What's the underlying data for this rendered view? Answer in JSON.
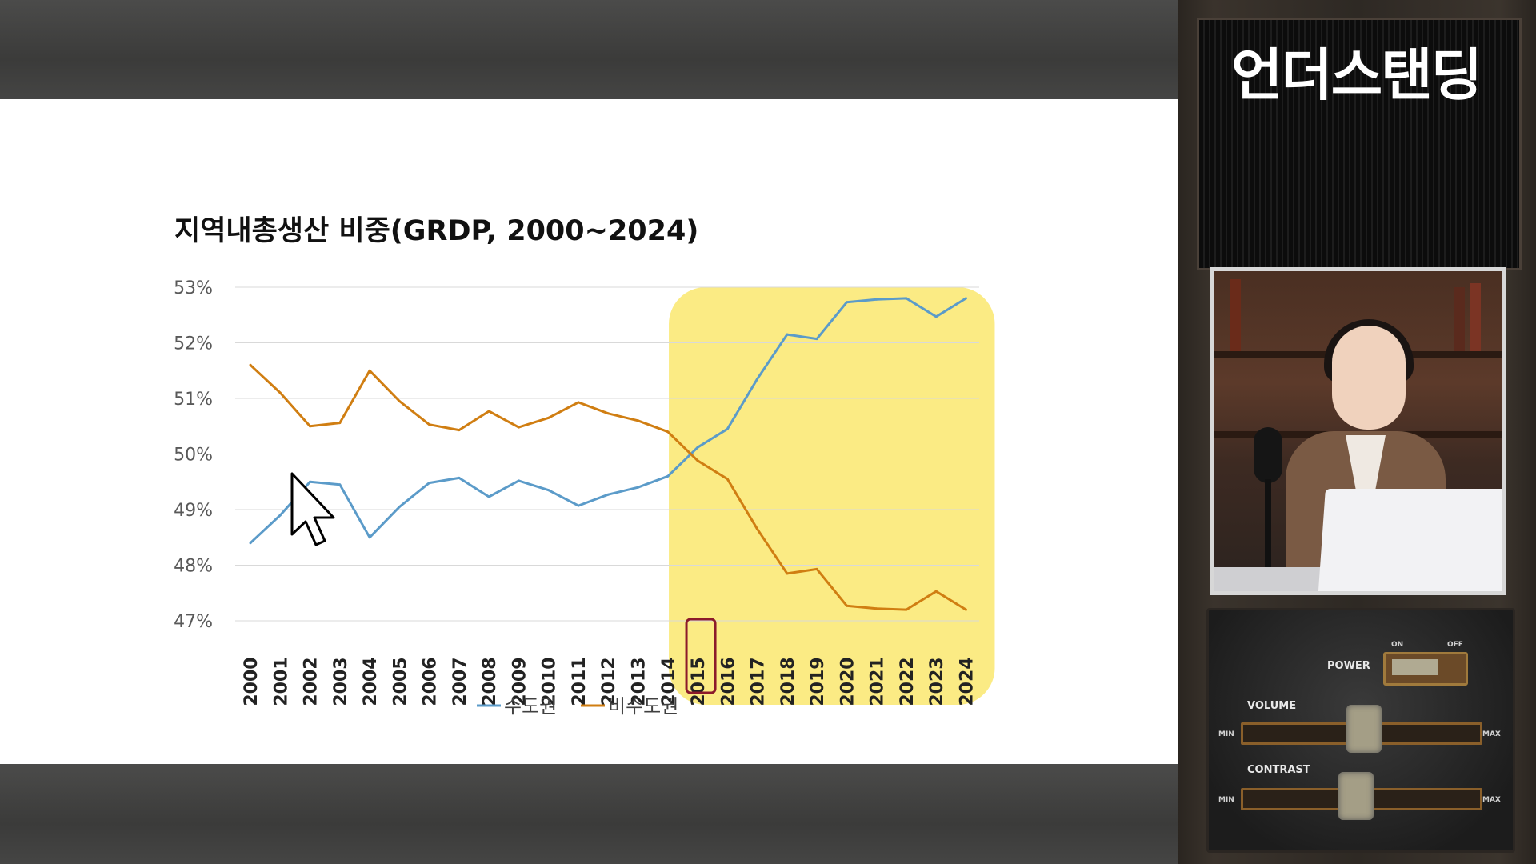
{
  "channel": {
    "title": "언더스탠딩"
  },
  "colors": {
    "series1": "#5b9bc9",
    "series2": "#d07e12",
    "highlight": "#fbe97a",
    "box": "#8b1a2b"
  },
  "chart_data": {
    "type": "line",
    "title": "지역내총생산 비중(GRDP, 2000~2024)",
    "x": [
      "2000",
      "2001",
      "2002",
      "2003",
      "2004",
      "2005",
      "2006",
      "2007",
      "2008",
      "2009",
      "2010",
      "2011",
      "2012",
      "2013",
      "2014",
      "2015",
      "2016",
      "2017",
      "2018",
      "2019",
      "2020",
      "2021",
      "2022",
      "2023",
      "2024"
    ],
    "series": [
      {
        "name": "수도권",
        "values": [
          48.4,
          48.9,
          49.5,
          49.45,
          48.5,
          49.05,
          49.48,
          49.57,
          49.23,
          49.52,
          49.35,
          49.07,
          49.27,
          49.4,
          49.6,
          50.12,
          50.45,
          51.35,
          52.15,
          52.07,
          52.73,
          52.78,
          52.8,
          52.47,
          52.8
        ]
      },
      {
        "name": "비수도권",
        "values": [
          51.6,
          51.1,
          50.5,
          50.56,
          51.5,
          50.95,
          50.53,
          50.43,
          50.77,
          50.48,
          50.65,
          50.93,
          50.73,
          50.6,
          50.4,
          49.88,
          49.55,
          48.65,
          47.85,
          47.93,
          47.27,
          47.22,
          47.2,
          47.53,
          47.2
        ]
      }
    ],
    "yticks": [
      "53%",
      "52%",
      "51%",
      "50%",
      "49%",
      "48%",
      "47%"
    ],
    "ylim": [
      47,
      53
    ],
    "grid": true,
    "legend": "bottom",
    "highlight_range": [
      "2015",
      "2024"
    ],
    "boxed_label": "2015"
  },
  "device": {
    "power_label": "POWER",
    "on_label": "ON",
    "off_label": "OFF",
    "volume_label": "VOLUME",
    "contrast_label": "CONTRAST",
    "min_label": "MIN",
    "max_label": "MAX"
  }
}
